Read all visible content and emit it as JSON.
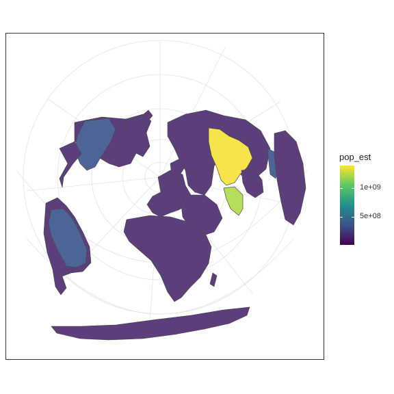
{
  "legend": {
    "title": "pop_est",
    "ticks": [
      {
        "label": "1e+09",
        "value": 1000000000
      },
      {
        "label": "5e+08",
        "value": 500000000
      }
    ],
    "range": [
      0,
      1400000000
    ],
    "colors": [
      "#440154",
      "#3b528b",
      "#21908c",
      "#5dc863",
      "#fde725"
    ]
  },
  "map": {
    "projection": "azimuthal, north-polar",
    "fill_colors": {
      "low": "#5b3e7a",
      "mid": "#4d6596",
      "india": "#b5de5c",
      "china": "#f7e34a",
      "ocean": "#ffffff",
      "border": "#4a4a4a",
      "graticule": "#e3e3e3"
    }
  }
}
